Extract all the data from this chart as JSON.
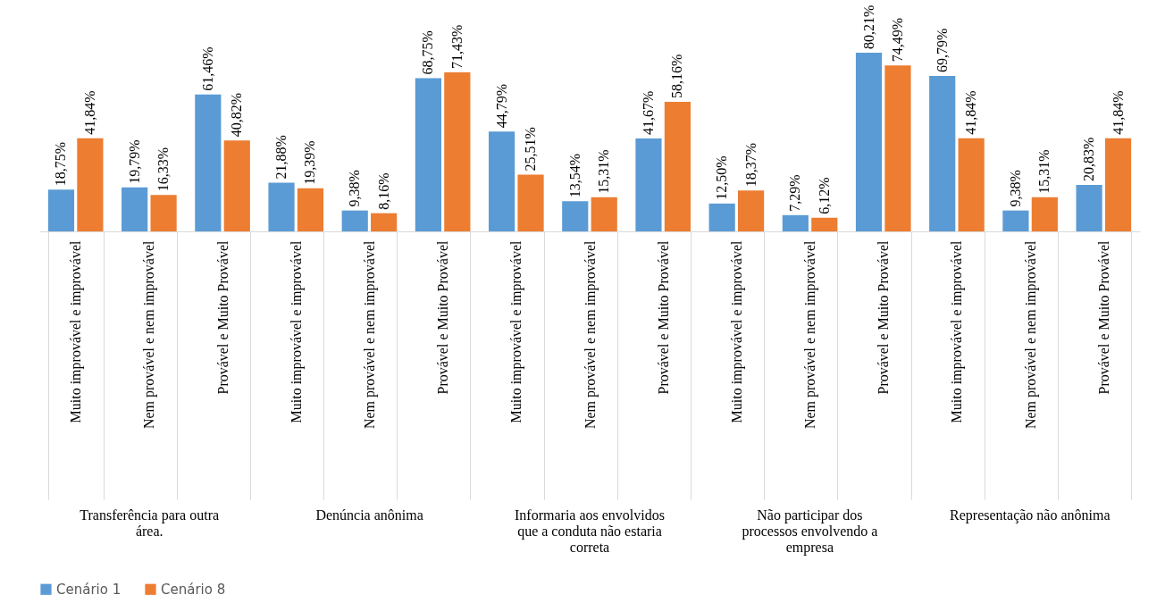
{
  "chart_data": {
    "type": "bar",
    "categories": [
      "Muito improvável e improvável",
      "Nem provável e nem improvável",
      "Provável e Muito Provável",
      "Muito improvável e improvável",
      "Nem provável e nem improvável",
      "Provável e Muito Provável",
      "Muito improvável e improvável",
      "Nem provável e nem improvável",
      "Provável e Muito Provável",
      "Muito improvável e improvável",
      "Nem provável e nem improvável",
      "Provável e Muito Provável",
      "Muito improvável e improvável",
      "Nem provável e nem improvável",
      "Provável e Muito Provável"
    ],
    "series": [
      {
        "name": "Cenário 1",
        "color": "#5b9bd5",
        "values": [
          18.75,
          19.79,
          61.46,
          21.88,
          9.38,
          68.75,
          44.79,
          13.54,
          41.67,
          12.5,
          7.29,
          80.21,
          69.79,
          9.38,
          20.83
        ],
        "value_labels": [
          "18,75%",
          "19,79%",
          "61,46%",
          "21,88%",
          "9,38%",
          "68,75%",
          "44,79%",
          "13,54%",
          "41,67%",
          "12,50%",
          "7,29%",
          "80,21%",
          "69,79%",
          "9,38%",
          "20,83%"
        ]
      },
      {
        "name": "Cenário 8",
        "color": "#ed7d31",
        "values": [
          41.84,
          16.33,
          40.82,
          19.39,
          8.16,
          71.43,
          25.51,
          15.31,
          58.16,
          18.37,
          6.12,
          74.49,
          41.84,
          15.31,
          41.84
        ],
        "value_labels": [
          "41,84%",
          "16,33%",
          "40,82%",
          "19,39%",
          "8,16%",
          "71,43%",
          "25,51%",
          "15,31%",
          "58,16%",
          "18,37%",
          "6,12%",
          "74,49%",
          "41,84%",
          "15,31%",
          "41,84%"
        ]
      }
    ],
    "annotations": [
      "Transferência para outra área.",
      "Denúncia anônima",
      "Informaria aos envolvidos que a conduta não estaria correta",
      "Não participar dos processos envolvendo a empresa",
      "Representação não anônima"
    ],
    "legend": "bottom"
  }
}
